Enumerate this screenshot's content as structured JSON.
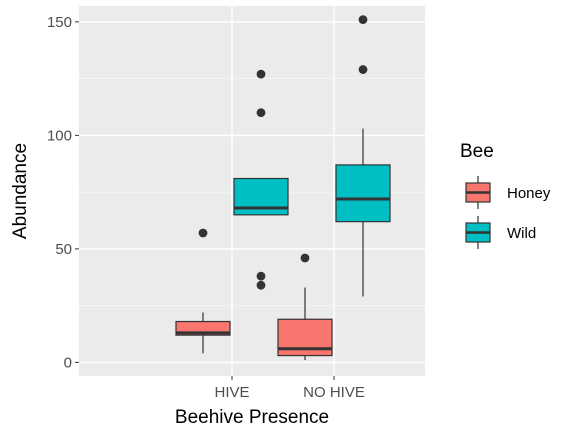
{
  "chart_data": {
    "type": "boxplot",
    "xlabel": "Beehive Presence",
    "ylabel": "Abundance",
    "categories": [
      "HIVE",
      "NO HIVE"
    ],
    "ylim": [
      -6,
      157
    ],
    "yticks": [
      0,
      50,
      100,
      150
    ],
    "grid": true,
    "legend": {
      "title": "Bee",
      "position": "right"
    },
    "series": [
      {
        "name": "Honey",
        "color": "#f8766d",
        "boxes": [
          {
            "category": "HIVE",
            "whisker_low": 4,
            "q1": 12,
            "median": 13,
            "q3": 18,
            "whisker_high": 22,
            "outliers": [
              57
            ]
          },
          {
            "category": "NO HIVE",
            "whisker_low": 1,
            "q1": 3,
            "median": 6,
            "q3": 19,
            "whisker_high": 33,
            "outliers": [
              46
            ]
          }
        ]
      },
      {
        "name": "Wild",
        "color": "#00bfc4",
        "boxes": [
          {
            "category": "HIVE",
            "whisker_low": 65,
            "q1": 65,
            "median": 68,
            "q3": 81,
            "whisker_high": 81,
            "outliers": [
              127,
              110,
              38,
              34
            ]
          },
          {
            "category": "NO HIVE",
            "whisker_low": 29,
            "q1": 62,
            "median": 72,
            "q3": 87,
            "whisker_high": 103,
            "outliers": [
              151,
              129
            ]
          }
        ]
      }
    ]
  }
}
